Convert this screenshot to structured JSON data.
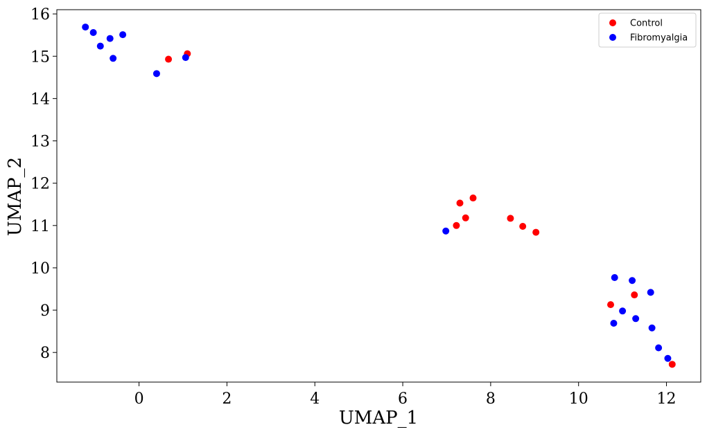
{
  "chart_data": {
    "type": "scatter",
    "title": "",
    "xlabel": "UMAP_1",
    "ylabel": "UMAP_2",
    "xlim": [
      -1.87,
      12.78
    ],
    "ylim": [
      7.3,
      16.1
    ],
    "xticks": [
      0,
      2,
      4,
      6,
      8,
      10,
      12
    ],
    "yticks": [
      8,
      9,
      10,
      11,
      12,
      13,
      14,
      15,
      16
    ],
    "grid": false,
    "legend_position": "top-right",
    "series": [
      {
        "name": "Control",
        "color": "#ff0000",
        "points": [
          [
            0.67,
            14.93
          ],
          [
            1.1,
            15.06
          ],
          [
            7.3,
            11.53
          ],
          [
            7.6,
            11.65
          ],
          [
            7.43,
            11.18
          ],
          [
            7.22,
            11.0
          ],
          [
            8.45,
            11.17
          ],
          [
            8.73,
            10.98
          ],
          [
            9.03,
            10.84
          ],
          [
            10.73,
            9.13
          ],
          [
            11.27,
            9.36
          ],
          [
            12.13,
            7.72
          ]
        ]
      },
      {
        "name": "Fibromyalgia",
        "color": "#0000ff",
        "points": [
          [
            -1.22,
            15.69
          ],
          [
            -1.04,
            15.56
          ],
          [
            -0.88,
            15.24
          ],
          [
            -0.66,
            15.42
          ],
          [
            -0.37,
            15.51
          ],
          [
            -0.59,
            14.95
          ],
          [
            0.4,
            14.59
          ],
          [
            1.06,
            14.97
          ],
          [
            6.98,
            10.87
          ],
          [
            10.82,
            9.77
          ],
          [
            11.22,
            9.7
          ],
          [
            11.64,
            9.42
          ],
          [
            11.0,
            8.98
          ],
          [
            10.8,
            8.69
          ],
          [
            11.3,
            8.8
          ],
          [
            11.67,
            8.58
          ],
          [
            11.82,
            8.11
          ],
          [
            12.03,
            7.86
          ]
        ]
      }
    ]
  }
}
